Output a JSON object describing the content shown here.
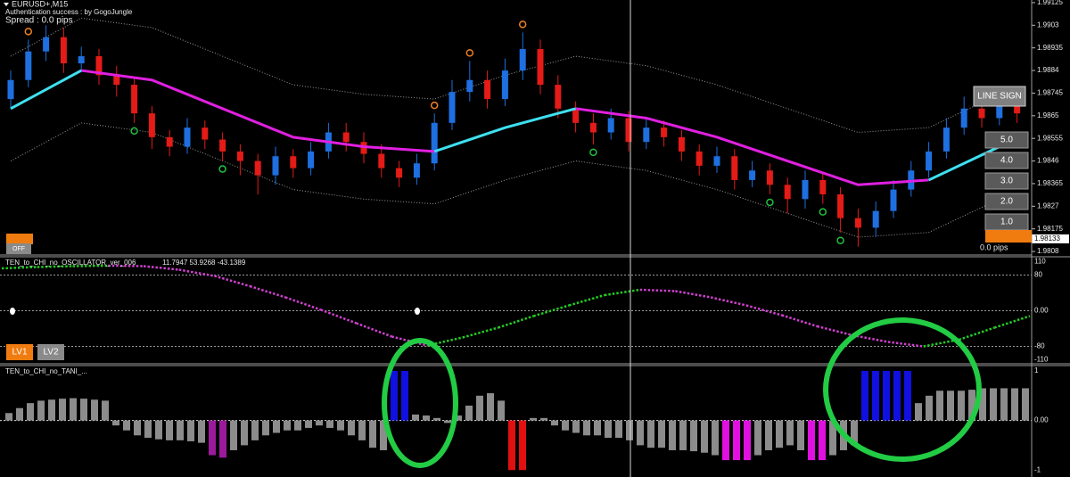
{
  "header": {
    "symbol": "EURUSD+,M15",
    "auth": "Authentication success : by GogoJungle",
    "spread": "Spread : 0.0 pips"
  },
  "buttons": {
    "line_sign": "LINE SIGN",
    "lots": [
      "5.0",
      "4.0",
      "3.0",
      "2.0",
      "1.0"
    ],
    "off": "OFF",
    "lv1": "LV1",
    "lv2": "LV2",
    "pips": "0.0 pips"
  },
  "price_panel": {
    "ylim": [
      1.98069,
      1.99136
    ],
    "yticks": [
      1.99125,
      1.9903,
      1.98935,
      1.9884,
      1.98745,
      1.9865,
      1.98555,
      1.9846,
      1.98365,
      1.9827,
      1.98175,
      1.9808
    ],
    "current_price": 1.98133,
    "up_color": "#1e6fe0",
    "down_color": "#e41b17",
    "candles": [
      [
        1.9872,
        1.9884,
        1.9868,
        1.988
      ],
      [
        1.988,
        1.9897,
        1.9877,
        1.9892
      ],
      [
        1.9892,
        1.9903,
        1.9888,
        1.9898
      ],
      [
        1.9898,
        1.9902,
        1.9883,
        1.9887
      ],
      [
        1.9887,
        1.9894,
        1.9884,
        1.989
      ],
      [
        1.989,
        1.9893,
        1.9878,
        1.9882
      ],
      [
        1.9882,
        1.9886,
        1.9873,
        1.9878
      ],
      [
        1.9878,
        1.9881,
        1.9862,
        1.9866
      ],
      [
        1.9866,
        1.9869,
        1.9851,
        1.9856
      ],
      [
        1.9856,
        1.9859,
        1.9848,
        1.9852
      ],
      [
        1.9852,
        1.9864,
        1.9849,
        1.986
      ],
      [
        1.986,
        1.9863,
        1.9851,
        1.9855
      ],
      [
        1.9855,
        1.9858,
        1.9846,
        1.985
      ],
      [
        1.985,
        1.9853,
        1.984,
        1.9846
      ],
      [
        1.9846,
        1.9849,
        1.9832,
        1.984
      ],
      [
        1.984,
        1.9852,
        1.9836,
        1.9848
      ],
      [
        1.9848,
        1.9851,
        1.9839,
        1.9843
      ],
      [
        1.9843,
        1.9854,
        1.984,
        1.985
      ],
      [
        1.985,
        1.9862,
        1.9847,
        1.9858
      ],
      [
        1.9858,
        1.9862,
        1.985,
        1.9854
      ],
      [
        1.9854,
        1.9858,
        1.9845,
        1.9849
      ],
      [
        1.9849,
        1.9853,
        1.9839,
        1.9843
      ],
      [
        1.9843,
        1.9846,
        1.9835,
        1.9839
      ],
      [
        1.9839,
        1.9849,
        1.9836,
        1.9845
      ],
      [
        1.9845,
        1.9866,
        1.9842,
        1.9862
      ],
      [
        1.9862,
        1.988,
        1.9859,
        1.9875
      ],
      [
        1.9875,
        1.9888,
        1.9871,
        1.988
      ],
      [
        1.988,
        1.9884,
        1.9868,
        1.9872
      ],
      [
        1.9872,
        1.9889,
        1.9869,
        1.9884
      ],
      [
        1.9884,
        1.99,
        1.988,
        1.9893
      ],
      [
        1.9893,
        1.9897,
        1.9874,
        1.9878
      ],
      [
        1.9878,
        1.9882,
        1.9864,
        1.9868
      ],
      [
        1.9868,
        1.9871,
        1.9858,
        1.9862
      ],
      [
        1.9862,
        1.9866,
        1.9853,
        1.9858
      ],
      [
        1.9858,
        1.9868,
        1.9855,
        1.9864
      ],
      [
        1.9864,
        1.9867,
        1.985,
        1.9854
      ],
      [
        1.9854,
        1.9864,
        1.9851,
        1.986
      ],
      [
        1.986,
        1.9863,
        1.9852,
        1.9856
      ],
      [
        1.9856,
        1.9859,
        1.9846,
        1.985
      ],
      [
        1.985,
        1.9853,
        1.984,
        1.9844
      ],
      [
        1.9844,
        1.9852,
        1.9841,
        1.9848
      ],
      [
        1.9848,
        1.9851,
        1.9834,
        1.9838
      ],
      [
        1.9838,
        1.9846,
        1.9835,
        1.9842
      ],
      [
        1.9842,
        1.9845,
        1.9832,
        1.9836
      ],
      [
        1.9836,
        1.9839,
        1.9824,
        1.983
      ],
      [
        1.983,
        1.9842,
        1.9826,
        1.9838
      ],
      [
        1.9838,
        1.9841,
        1.9828,
        1.9832
      ],
      [
        1.9832,
        1.9835,
        1.9816,
        1.9822
      ],
      [
        1.9822,
        1.9826,
        1.981,
        1.9818
      ],
      [
        1.9818,
        1.9829,
        1.9814,
        1.9825
      ],
      [
        1.9825,
        1.9838,
        1.9822,
        1.9834
      ],
      [
        1.9834,
        1.9846,
        1.9831,
        1.9842
      ],
      [
        1.9842,
        1.9854,
        1.9839,
        1.985
      ],
      [
        1.985,
        1.9864,
        1.9847,
        1.986
      ],
      [
        1.986,
        1.9873,
        1.9857,
        1.9868
      ],
      [
        1.9868,
        1.9872,
        1.986,
        1.9864
      ],
      [
        1.9864,
        1.9874,
        1.9861,
        1.987
      ],
      [
        1.987,
        1.9873,
        1.9862,
        1.9866
      ]
    ],
    "ma_candles": [
      0,
      4,
      8,
      12,
      16,
      20,
      24,
      28,
      32,
      36,
      40,
      44,
      48,
      52,
      56
    ],
    "ma_up": {
      "color": "#3ee0f0",
      "values": [
        1.9868,
        1.9884,
        null,
        null,
        null,
        null,
        1.985,
        1.986,
        1.9868,
        null,
        null,
        null,
        null,
        1.9838,
        1.9852
      ]
    },
    "ma_down": {
      "color": "#e020e0",
      "values": [
        null,
        1.9884,
        1.988,
        1.9868,
        1.9856,
        1.9852,
        1.985,
        null,
        1.9868,
        1.9864,
        1.9856,
        1.9846,
        1.9836,
        1.9838,
        null
      ]
    },
    "band_upper": [
      1.989,
      1.9906,
      1.9902,
      1.989,
      1.9878,
      1.9874,
      1.9872,
      1.9882,
      1.989,
      1.9886,
      1.9878,
      1.9868,
      1.9858,
      1.986,
      1.9874
    ],
    "band_lower": [
      1.9846,
      1.9862,
      1.9858,
      1.9846,
      1.9834,
      1.983,
      1.9828,
      1.9838,
      1.9846,
      1.9842,
      1.9834,
      1.9824,
      1.9814,
      1.9816,
      1.983
    ],
    "signal_high_candles": [
      1,
      24,
      26,
      29
    ],
    "signal_low_candles": [
      7,
      12,
      33,
      43,
      46,
      47
    ]
  },
  "oscillator_panel": {
    "title": "TEN_to_CHI_no_OSCILLATOR_ver_006",
    "readout": "11.7947 53.9268 -43.1389",
    "ylim": [
      -121,
      119
    ],
    "yticks": [
      110,
      80,
      {
        "value": 0,
        "label": "0.00"
      },
      -80,
      -110
    ],
    "rising_color": "#22cc22",
    "falling_color": "#d040d0",
    "values": [
      95,
      98,
      100,
      101,
      100,
      92,
      78,
      55,
      30,
      2,
      -28,
      -58,
      -78,
      -60,
      -38,
      -12,
      12,
      35,
      47,
      44,
      30,
      12,
      -10,
      -35,
      -55,
      -70,
      -80,
      -65,
      -38,
      -12
    ]
  },
  "tani_panel": {
    "title": "TEN_to_CHI_no_TANI_...",
    "ylim": [
      -1.14,
      1.09
    ],
    "yticks": [
      1,
      {
        "value": 0,
        "label": "0.00"
      },
      -1
    ],
    "runs": [
      {
        "color": "#8c8c8c",
        "values": [
          0.15,
          0.25,
          0.35,
          0.4,
          0.42,
          0.44,
          0.45,
          0.44,
          0.42,
          0.4
        ]
      },
      {
        "color": "#8c8c8c",
        "values": [
          -0.1,
          -0.2,
          -0.3,
          -0.35,
          -0.38,
          -0.4,
          -0.4,
          -0.42,
          -0.45
        ]
      },
      {
        "color": "#9b1a9b",
        "values": [
          -0.7,
          -0.75
        ]
      },
      {
        "color": "#8c8c8c",
        "values": [
          -0.6,
          -0.5,
          -0.4,
          -0.3,
          -0.25,
          -0.2,
          -0.2,
          -0.15,
          -0.1,
          -0.15,
          -0.2,
          -0.3,
          -0.4,
          -0.55,
          -0.6
        ]
      },
      {
        "color": "#1010e0",
        "values": [
          1,
          1
        ]
      },
      {
        "color": "#8c8c8c",
        "values": [
          0.12,
          0.1,
          0.05,
          -0.05,
          0.1,
          0.3,
          0.5,
          0.55,
          0.4
        ]
      },
      {
        "color": "#e01010",
        "values": [
          -1,
          -1
        ]
      },
      {
        "color": "#8c8c8c",
        "values": [
          0.05,
          0.05,
          -0.1,
          -0.2,
          -0.25,
          -0.3,
          -0.3,
          -0.35,
          -0.35,
          -0.4,
          -0.5,
          -0.55,
          -0.55,
          -0.6,
          -0.6,
          -0.62,
          -0.65,
          -0.7
        ]
      },
      {
        "color": "#e010e0",
        "values": [
          -0.8,
          -0.8,
          -0.8
        ]
      },
      {
        "color": "#8c8c8c",
        "values": [
          -0.7,
          -0.6,
          -0.55,
          -0.5,
          -0.6
        ]
      },
      {
        "color": "#e010e0",
        "values": [
          -0.8,
          -0.8
        ]
      },
      {
        "color": "#8c8c8c",
        "values": [
          -0.7,
          -0.6,
          -0.5
        ]
      },
      {
        "color": "#1010e0",
        "values": [
          1,
          1,
          1,
          1,
          1
        ]
      },
      {
        "color": "#8c8c8c",
        "values": [
          0.35,
          0.5,
          0.6,
          0.6,
          0.6,
          0.62,
          0.65,
          0.65,
          0.65,
          0.65,
          0.65
        ]
      }
    ]
  }
}
